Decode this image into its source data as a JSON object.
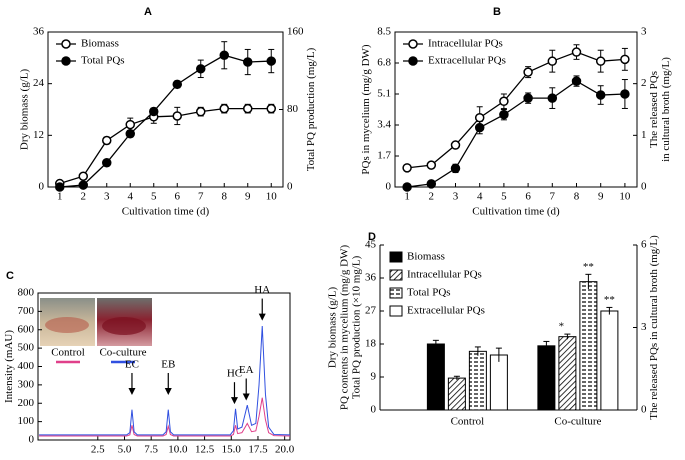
{
  "chart_data": [
    {
      "type": "line",
      "panel": "A",
      "xlabel": "Cultivation time (d)",
      "ylabel": [
        "Dry biomass (g/L)"
      ],
      "y2label": [
        "Total PQ production (mg/L)"
      ],
      "x": [
        1,
        2,
        3,
        4,
        5,
        6,
        7,
        8,
        9,
        10
      ],
      "xlim": [
        0.5,
        10.5
      ],
      "xticks": [
        1,
        2,
        3,
        4,
        5,
        6,
        7,
        8,
        9,
        10
      ],
      "ylim": [
        0,
        36
      ],
      "yticks": [
        0,
        12,
        24,
        36
      ],
      "y2lim": [
        0,
        160
      ],
      "y2ticks": [
        0,
        80,
        160
      ],
      "legend": "upper left",
      "series": [
        {
          "name": "Biomass",
          "color": "#000000",
          "marker": "open",
          "values": [
            0.8,
            2.5,
            10.8,
            14.5,
            16.3,
            16.5,
            17.5,
            18.2,
            18.2,
            18.2
          ],
          "errors": [
            0.3,
            0.4,
            0.8,
            1.5,
            1.5,
            2.0,
            1.0,
            1.0,
            1.0,
            1.0
          ]
        },
        {
          "name": "Total PQs",
          "color": "#000000",
          "marker": "filled",
          "axis": "y2",
          "values": [
            0,
            2,
            25,
            55,
            78,
            106,
            122,
            136,
            129,
            130
          ],
          "errors": [
            0.5,
            1,
            2.5,
            3,
            3.5,
            3.5,
            9,
            14,
            13,
            12
          ]
        }
      ]
    },
    {
      "type": "line",
      "panel": "B",
      "xlabel": "Cultivation time (d)",
      "ylabel": [
        "PQs in mycelium (mg/g DW)"
      ],
      "y2label": [
        "The released PQs",
        "in cultural broth (mg/L)"
      ],
      "x": [
        1,
        2,
        3,
        4,
        5,
        6,
        7,
        8,
        9,
        10
      ],
      "xlim": [
        0.5,
        10.5
      ],
      "xticks": [
        1,
        2,
        3,
        4,
        5,
        6,
        7,
        8,
        9,
        10
      ],
      "ylim": [
        0,
        8.5
      ],
      "yticks": [
        0,
        1.7,
        3.4,
        5.1,
        6.8,
        8.5
      ],
      "y2lim": [
        0,
        3
      ],
      "y2ticks": [
        0,
        1,
        2,
        3
      ],
      "legend": "upper left",
      "series": [
        {
          "name": "Intracellular PQs",
          "color": "#000000",
          "marker": "open",
          "values": [
            1.05,
            1.2,
            2.3,
            3.8,
            4.7,
            6.3,
            6.9,
            7.4,
            6.9,
            7.0
          ],
          "errors": [
            0.1,
            0.1,
            0.15,
            0.6,
            0.4,
            0.3,
            0.6,
            0.4,
            0.6,
            0.6
          ]
        },
        {
          "name": "Extracellular PQs",
          "color": "#000000",
          "marker": "filled",
          "axis": "y2",
          "values": [
            0,
            0.06,
            0.36,
            1.15,
            1.4,
            1.72,
            1.72,
            2.05,
            1.78,
            1.8
          ],
          "errors": [
            0,
            0.03,
            0.08,
            0.12,
            0.1,
            0.1,
            0.2,
            0.1,
            0.18,
            0.28
          ]
        }
      ]
    },
    {
      "type": "line",
      "panel": "C",
      "xlabel": "Retention time (min)",
      "ylabel": [
        "Intensity (mAU)"
      ],
      "x": [
        -3.0,
        5.2,
        5.5,
        5.7,
        5.9,
        6.2,
        8.6,
        8.9,
        9.1,
        9.3,
        9.6,
        14.9,
        15.2,
        15.4,
        15.6,
        16.0,
        16.5,
        16.9,
        17.3,
        17.6,
        17.9,
        18.2,
        18.5,
        19.0,
        20.5
      ],
      "xlim": [
        -3.1,
        20.5
      ],
      "xticks": [
        2.5,
        {
          "value": 5,
          "label": "5.0"
        },
        7.5,
        {
          "value": 10,
          "label": "10.0"
        },
        12.5,
        {
          "value": 15,
          "label": "15.0"
        },
        17.5,
        {
          "value": 20,
          "label": "20.0"
        }
      ],
      "ylim": [
        0,
        800
      ],
      "yticks": [
        0,
        100,
        200,
        300,
        400,
        500,
        600,
        700,
        800
      ],
      "legend": "inset",
      "series": [
        {
          "name": "Control",
          "color": "#e0408a",
          "values": [
            22,
            22,
            28,
            80,
            30,
            22,
            22,
            30,
            75,
            30,
            22,
            22,
            30,
            80,
            35,
            40,
            90,
            45,
            50,
            130,
            230,
            110,
            40,
            24,
            22
          ]
        },
        {
          "name": "Co-culture",
          "color": "#3050e0",
          "values": [
            28,
            28,
            40,
            165,
            45,
            28,
            28,
            45,
            165,
            45,
            28,
            28,
            50,
            170,
            60,
            70,
            190,
            80,
            90,
            300,
            620,
            250,
            70,
            30,
            28
          ]
        }
      ],
      "annotations": [
        {
          "label": "EC",
          "x": 5.7,
          "y": 245
        },
        {
          "label": "EB",
          "x": 9.1,
          "y": 245
        },
        {
          "label": "HC",
          "x": 15.3,
          "y": 195
        },
        {
          "label": "EA",
          "x": 16.4,
          "y": 215
        },
        {
          "label": "HA",
          "x": 17.9,
          "y": 650
        }
      ]
    },
    {
      "type": "bar",
      "panel": "D",
      "ylabel": [
        "Dry biomass (g/L)",
        "PQ contents in mycelium (mg/g DW)",
        "Total PQ production (×10 mg/L)"
      ],
      "y2label": [
        "The released PQs in cultural broth (mg/L)"
      ],
      "categories": [
        "Control",
        "Co-culture"
      ],
      "ylim": [
        0,
        45
      ],
      "yticks": [
        0,
        9,
        18,
        27,
        36,
        45
      ],
      "y2lim": [
        0,
        6
      ],
      "y2ticks": [
        0,
        3,
        6
      ],
      "legend": "upper left",
      "series": [
        {
          "name": "Biomass",
          "color": "#000000",
          "pattern": "solid",
          "values": [
            18,
            17.5
          ],
          "errors": [
            1,
            1.2
          ]
        },
        {
          "name": "Intracellular PQs",
          "color": "#000000",
          "pattern": "diagonal",
          "values": [
            8.7,
            20
          ],
          "errors": [
            0.5,
            0.7
          ],
          "significance": [
            null,
            "*"
          ]
        },
        {
          "name": "Total PQs",
          "color": "#000000",
          "pattern": "dashes",
          "values": [
            16,
            35
          ],
          "errors": [
            1.2,
            2
          ],
          "significance": [
            null,
            "**"
          ]
        },
        {
          "name": "Extracellular PQs",
          "color": "#000000",
          "pattern": "none",
          "axis": "y2",
          "values": [
            2.0,
            3.6
          ],
          "errors": [
            0.25,
            0.13
          ],
          "significance": [
            null,
            "**"
          ]
        }
      ]
    }
  ]
}
